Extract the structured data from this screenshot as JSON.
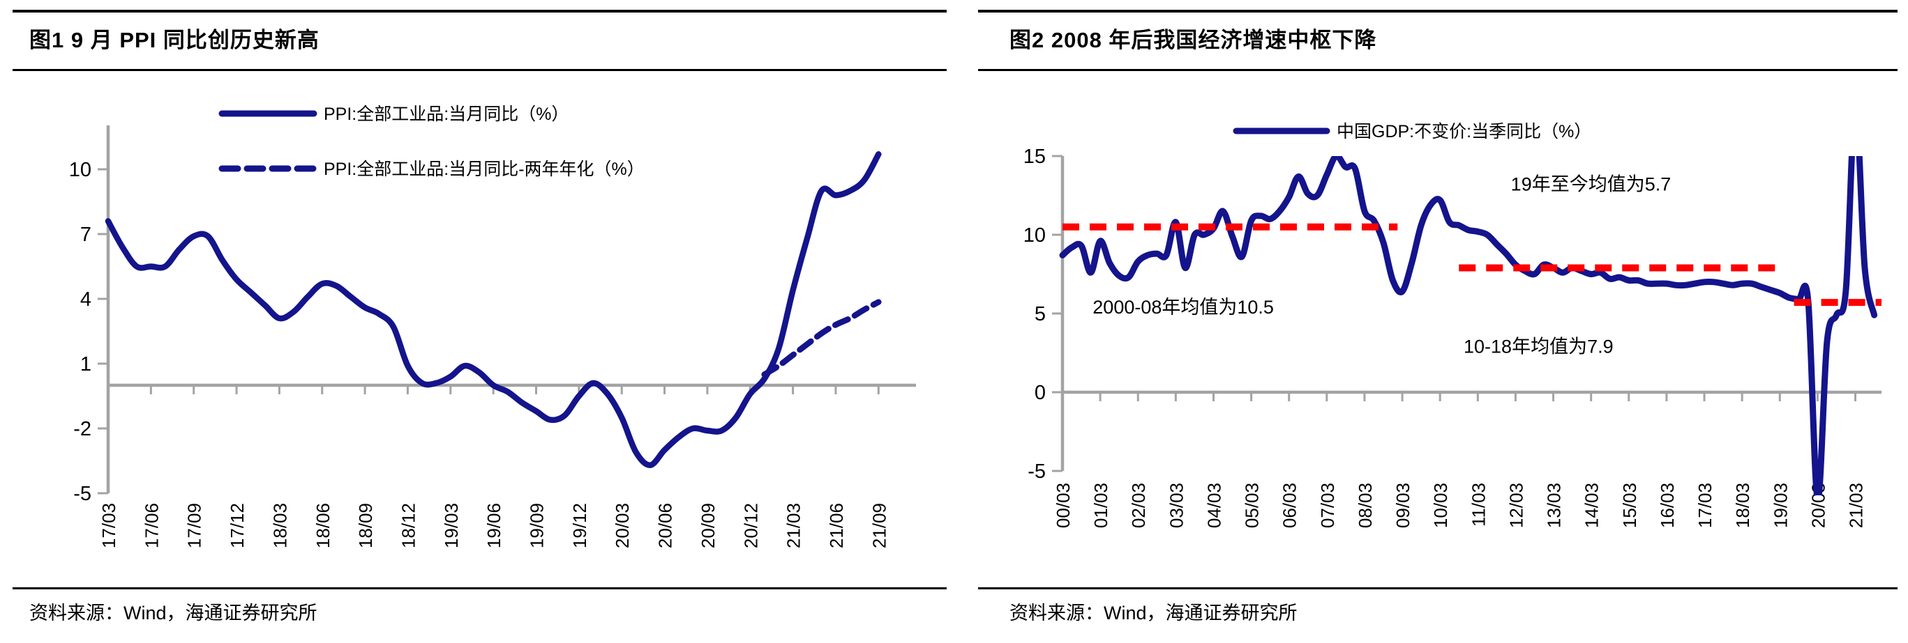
{
  "source_label": "资料来源：Wind，海通证券研究所",
  "chart_data": [
    {
      "type": "line",
      "title": "图1  9 月 PPI 同比创历史新高",
      "ylabel": "%",
      "ylim": [
        -5,
        12
      ],
      "y_ticks": [
        10,
        7,
        4,
        1,
        -2,
        -5
      ],
      "x_tick_labels": [
        "17/03",
        "17/06",
        "17/09",
        "17/12",
        "18/03",
        "18/06",
        "18/09",
        "18/12",
        "19/03",
        "19/06",
        "19/09",
        "19/12",
        "20/03",
        "20/06",
        "20/09",
        "20/12",
        "21/03",
        "21/06",
        "21/09"
      ],
      "points_per_tick": 3,
      "grid": false,
      "legend_position": "top-center-inside",
      "colors": {
        "line": "#14148C",
        "axis": "#A3A3A3",
        "text": "#000000"
      },
      "series": [
        {
          "name": "PPI:全部工业品:当月同比（%）",
          "style": "solid",
          "start_index": 0,
          "values": [
            7.6,
            6.4,
            5.5,
            5.5,
            5.5,
            6.3,
            6.9,
            6.9,
            5.8,
            4.9,
            4.3,
            3.7,
            3.1,
            3.4,
            4.1,
            4.7,
            4.6,
            4.1,
            3.6,
            3.3,
            2.7,
            0.9,
            0.1,
            0.1,
            0.4,
            0.9,
            0.6,
            0.0,
            -0.3,
            -0.8,
            -1.2,
            -1.6,
            -1.4,
            -0.5,
            0.1,
            -0.4,
            -1.5,
            -3.1,
            -3.7,
            -3.0,
            -2.4,
            -2.0,
            -2.1,
            -2.1,
            -1.5,
            -0.4,
            0.3,
            1.7,
            4.4,
            6.8,
            9.0,
            8.8,
            9.0,
            9.5,
            10.7
          ]
        },
        {
          "name": "PPI:全部工业品:当月同比-两年年化（%）",
          "style": "dashed",
          "start_index": 46,
          "values": [
            0.5,
            0.9,
            1.4,
            1.9,
            2.4,
            2.8,
            3.1,
            3.5,
            3.85
          ]
        }
      ]
    },
    {
      "type": "line",
      "title": "图2  2008 年后我国经济增速中枢下降",
      "ylabel": "%",
      "ylim": [
        -5,
        15
      ],
      "y_ticks": [
        15,
        10,
        5,
        0,
        -5
      ],
      "x_tick_labels": [
        "00/03",
        "01/03",
        "02/03",
        "03/03",
        "04/03",
        "05/03",
        "06/03",
        "07/03",
        "08/03",
        "09/03",
        "10/03",
        "11/03",
        "12/03",
        "13/03",
        "14/03",
        "15/03",
        "16/03",
        "17/03",
        "18/03",
        "19/03",
        "20/03",
        "21/03"
      ],
      "points_per_tick": 4,
      "grid": false,
      "legend_position": "top-center-inside",
      "colors": {
        "line": "#14148C",
        "axis": "#A3A3A3",
        "mean_line": "#FF0000",
        "text": "#000000"
      },
      "series": [
        {
          "name": "中国GDP:不变价:当季同比（%）",
          "style": "solid",
          "start_index": 0,
          "values": [
            8.7,
            9.2,
            9.3,
            7.6,
            9.6,
            8.2,
            7.4,
            7.3,
            8.3,
            8.7,
            8.8,
            8.7,
            10.8,
            7.9,
            10.0,
            10.0,
            10.4,
            11.5,
            9.9,
            8.6,
            10.9,
            11.2,
            11.0,
            11.5,
            12.4,
            13.7,
            12.6,
            12.5,
            13.8,
            15.0,
            14.3,
            14.2,
            11.5,
            10.9,
            9.5,
            7.1,
            6.4,
            8.2,
            10.6,
            11.9,
            12.2,
            10.8,
            10.6,
            10.3,
            10.2,
            10.0,
            9.4,
            8.8,
            8.1,
            7.7,
            7.5,
            8.1,
            7.9,
            7.6,
            7.9,
            7.7,
            7.5,
            7.6,
            7.2,
            7.3,
            7.1,
            7.1,
            6.9,
            6.9,
            6.9,
            6.8,
            6.8,
            6.9,
            7.0,
            7.0,
            6.9,
            6.8,
            6.9,
            6.9,
            6.7,
            6.5,
            6.3,
            6.0,
            5.9,
            5.8,
            -6.8,
            3.2,
            4.9,
            6.5,
            18.3,
            7.9,
            4.9
          ]
        }
      ],
      "mean_lines": [
        {
          "value": 10.5,
          "from_index": 0,
          "to_index": 35.5,
          "note": "2000-08 mean"
        },
        {
          "value": 7.9,
          "from_index": 42,
          "to_index": 76.5,
          "note": "2010-18 mean"
        },
        {
          "value": 5.7,
          "from_index": 77.5,
          "to_index": 87,
          "note": "2019-now mean"
        }
      ],
      "annotations": [
        {
          "text": "2000-08年均值为10.5",
          "x_index": 3.2,
          "y_value": 5.4
        },
        {
          "text": "10-18年均值为7.9",
          "x_index": 42.5,
          "y_value": 2.9
        },
        {
          "text": "19年至今均值为5.7",
          "x_index": 47.5,
          "y_value": 13.2
        }
      ]
    }
  ]
}
